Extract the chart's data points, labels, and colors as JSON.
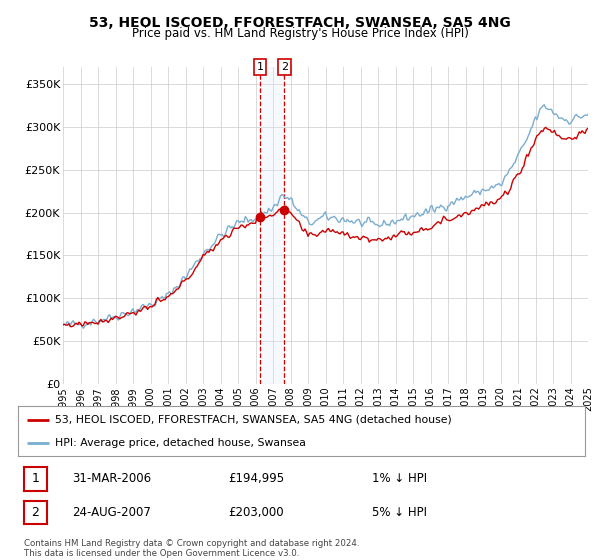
{
  "title": "53, HEOL ISCOED, FFORESTFACH, SWANSEA, SA5 4NG",
  "subtitle": "Price paid vs. HM Land Registry's House Price Index (HPI)",
  "legend_line1": "53, HEOL ISCOED, FFORESTFACH, SWANSEA, SA5 4NG (detached house)",
  "legend_line2": "HPI: Average price, detached house, Swansea",
  "footer": "Contains HM Land Registry data © Crown copyright and database right 2024.\nThis data is licensed under the Open Government Licence v3.0.",
  "transaction1_date": "31-MAR-2006",
  "transaction1_price": "£194,995",
  "transaction1_hpi": "1% ↓ HPI",
  "transaction2_date": "24-AUG-2007",
  "transaction2_price": "£203,000",
  "transaction2_hpi": "5% ↓ HPI",
  "sale1_date_num": 2006.25,
  "sale1_price": 194995,
  "sale2_date_num": 2007.65,
  "sale2_price": 203000,
  "ylim": [
    0,
    370000
  ],
  "yticks": [
    0,
    50000,
    100000,
    150000,
    200000,
    250000,
    300000,
    350000
  ],
  "ytick_labels": [
    "£0",
    "£50K",
    "£100K",
    "£150K",
    "£200K",
    "£250K",
    "£300K",
    "£350K"
  ],
  "red_color": "#cc0000",
  "blue_color": "#7aadcf",
  "shade_color": "#ddeeff",
  "background_color": "#ffffff",
  "grid_color": "#cccccc"
}
